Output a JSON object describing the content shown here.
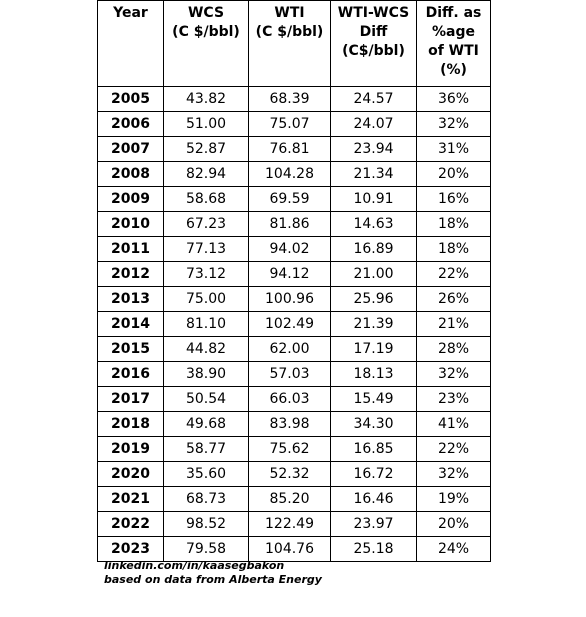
{
  "table": {
    "header": [
      [
        "Year"
      ],
      [
        "WCS",
        "(C $/bbl)"
      ],
      [
        "WTI",
        "(C $/bbl)"
      ],
      [
        "WTI-WCS",
        "Diff",
        "(C$/bbl)"
      ],
      [
        "Diff. as",
        "%age",
        "of WTI",
        "(%)"
      ]
    ],
    "rows": [
      [
        "2005",
        "43.82",
        "68.39",
        "24.57",
        "36%"
      ],
      [
        "2006",
        "51.00",
        "75.07",
        "24.07",
        "32%"
      ],
      [
        "2007",
        "52.87",
        "76.81",
        "23.94",
        "31%"
      ],
      [
        "2008",
        "82.94",
        "104.28",
        "21.34",
        "20%"
      ],
      [
        "2009",
        "58.68",
        "69.59",
        "10.91",
        "16%"
      ],
      [
        "2010",
        "67.23",
        "81.86",
        "14.63",
        "18%"
      ],
      [
        "2011",
        "77.13",
        "94.02",
        "16.89",
        "18%"
      ],
      [
        "2012",
        "73.12",
        "94.12",
        "21.00",
        "22%"
      ],
      [
        "2013",
        "75.00",
        "100.96",
        "25.96",
        "26%"
      ],
      [
        "2014",
        "81.10",
        "102.49",
        "21.39",
        "21%"
      ],
      [
        "2015",
        "44.82",
        "62.00",
        "17.19",
        "28%"
      ],
      [
        "2016",
        "38.90",
        "57.03",
        "18.13",
        "32%"
      ],
      [
        "2017",
        "50.54",
        "66.03",
        "15.49",
        "23%"
      ],
      [
        "2018",
        "49.68",
        "83.98",
        "34.30",
        "41%"
      ],
      [
        "2019",
        "58.77",
        "75.62",
        "16.85",
        "22%"
      ],
      [
        "2020",
        "35.60",
        "52.32",
        "16.72",
        "32%"
      ],
      [
        "2021",
        "68.73",
        "85.20",
        "16.46",
        "19%"
      ],
      [
        "2022",
        "98.52",
        "122.49",
        "23.97",
        "20%"
      ],
      [
        "2023",
        "79.58",
        "104.76",
        "25.18",
        "24%"
      ]
    ]
  },
  "footer": [
    "linkedin.com/in/kaasegbakon",
    "based on data from Alberta Energy"
  ]
}
